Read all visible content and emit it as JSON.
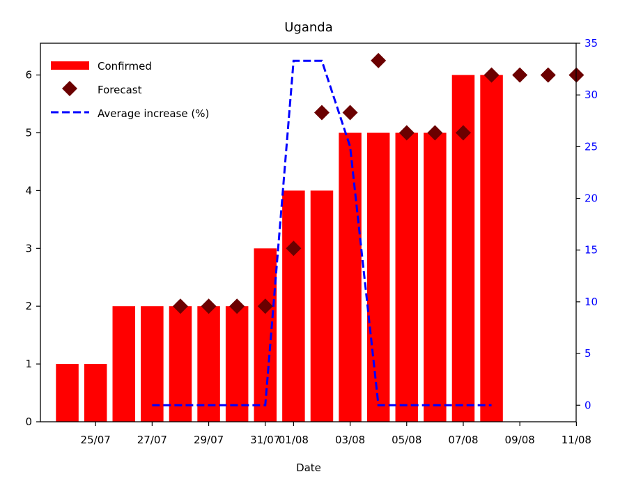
{
  "chart_data": {
    "type": "bar",
    "title": "Uganda",
    "xlabel": "Date",
    "ylabel": "",
    "ylabel_right": "",
    "x_tick_labels": [
      "25/07",
      "27/07",
      "29/07",
      "31/07",
      "01/08",
      "03/08",
      "05/08",
      "07/08",
      "09/08",
      "11/08"
    ],
    "x_tick_days": [
      1,
      3,
      5,
      7,
      8,
      10,
      12,
      14,
      16,
      18
    ],
    "ylim_left": [
      0,
      6.55
    ],
    "ylim_right": [
      -1.6,
      35
    ],
    "left_ticks": [
      0,
      1,
      2,
      3,
      4,
      5,
      6
    ],
    "right_ticks": [
      0,
      5,
      10,
      15,
      20,
      25,
      30,
      35
    ],
    "legend_position": "top-left",
    "series": [
      {
        "name": "Confirmed",
        "type": "bar",
        "axis": "left",
        "color": "#ff0000",
        "x": [
          0,
          1,
          2,
          3,
          4,
          5,
          6,
          7,
          8,
          9,
          10,
          11,
          12,
          13,
          14,
          15
        ],
        "values": [
          1,
          1,
          2,
          2,
          2,
          2,
          2,
          3,
          4,
          4,
          5,
          5,
          5,
          5,
          6,
          6
        ]
      },
      {
        "name": "Forecast",
        "type": "scatter",
        "axis": "left",
        "color": "#6b0000",
        "x": [
          4,
          5,
          6,
          7,
          8,
          9,
          10,
          11,
          12,
          13,
          14,
          15,
          16,
          17,
          18
        ],
        "values": [
          2,
          2,
          2,
          2,
          3,
          5.35,
          5.35,
          6.25,
          5,
          5,
          5,
          6,
          6,
          6,
          6
        ]
      },
      {
        "name": "Average increase (%)",
        "type": "line",
        "axis": "right",
        "color": "#0000ff",
        "x": [
          3,
          4,
          5,
          6,
          7,
          8,
          9,
          10,
          11,
          12,
          13,
          14,
          15
        ],
        "values": [
          0,
          0,
          0,
          0,
          0,
          33.3,
          33.3,
          25,
          0,
          0,
          0,
          0,
          0
        ]
      }
    ]
  }
}
